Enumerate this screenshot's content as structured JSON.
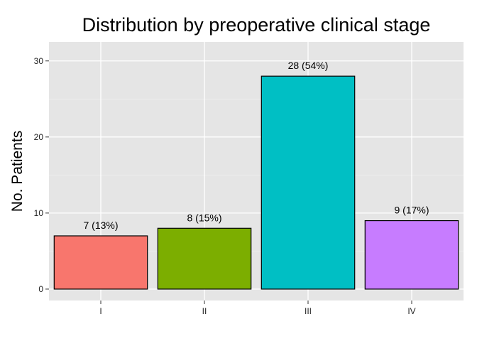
{
  "chart_data": {
    "type": "bar",
    "title": "Distribution by preoperative clinical stage",
    "xlabel": "",
    "ylabel": "No. Patients",
    "categories": [
      "I",
      "II",
      "III",
      "IV"
    ],
    "values": [
      7,
      8,
      28,
      9
    ],
    "data_labels": [
      "7 (13%)",
      "8 (15%)",
      "28 (54%)",
      "9 (17%)"
    ],
    "colors": [
      "#F8766D",
      "#7CAE00",
      "#00BFC4",
      "#C77CFF"
    ],
    "ylim": [
      -1.5,
      32.5
    ],
    "yticks": [
      0,
      10,
      20,
      30
    ],
    "grid": true,
    "legend": "none",
    "panel_background": "#E5E5E5",
    "bar_outline": "#000000"
  }
}
